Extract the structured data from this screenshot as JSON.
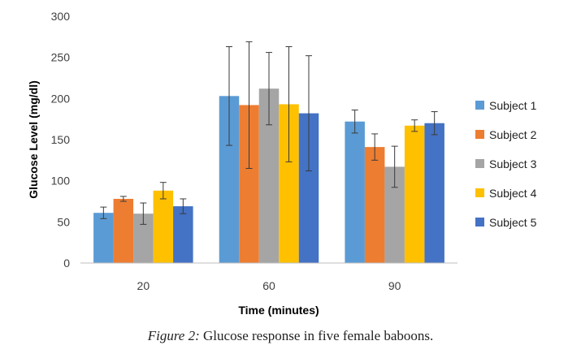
{
  "chart_data": {
    "type": "bar",
    "title": "",
    "xlabel": "Time (minutes)",
    "ylabel": "Glucose Level (mg/dl)",
    "categories": [
      "20",
      "60",
      "90"
    ],
    "ylim": [
      0,
      300
    ],
    "yticks": [
      0,
      50,
      100,
      150,
      200,
      250,
      300
    ],
    "grid": false,
    "legend": "right",
    "series": [
      {
        "name": "Subject 1",
        "color": "#5B9BD5",
        "values": [
          61,
          203,
          172
        ],
        "errors": [
          7,
          60,
          14
        ]
      },
      {
        "name": "Subject 2",
        "color": "#ED7D31",
        "values": [
          78,
          192,
          141
        ],
        "errors": [
          3,
          77,
          16
        ]
      },
      {
        "name": "Subject 3",
        "color": "#A5A5A5",
        "values": [
          60,
          212,
          117
        ],
        "errors": [
          13,
          44,
          25
        ]
      },
      {
        "name": "Subject 4",
        "color": "#FFC000",
        "values": [
          88,
          193,
          167
        ],
        "errors": [
          10,
          70,
          7
        ]
      },
      {
        "name": "Subject 5",
        "color": "#4472C4",
        "values": [
          69,
          182,
          170
        ],
        "errors": [
          9,
          70,
          14
        ]
      }
    ]
  },
  "caption": {
    "lead": "Figure 2:",
    "text": " Glucose response in five female baboons."
  }
}
